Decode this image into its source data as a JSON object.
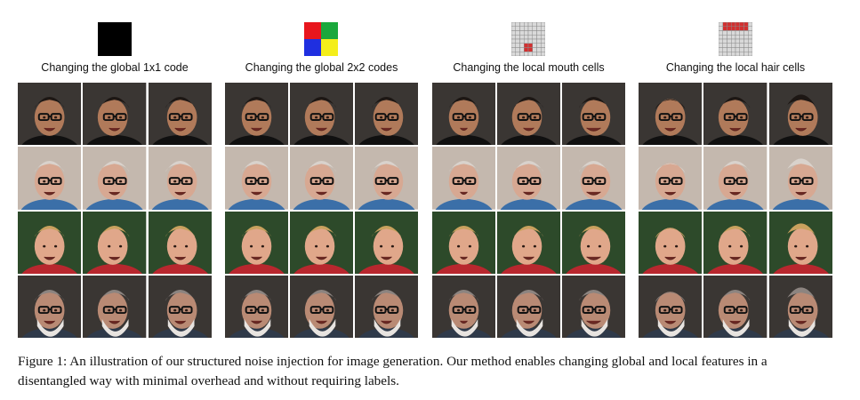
{
  "figure": {
    "panels": [
      {
        "label": "Changing the global 1x1 code",
        "icon": "black-square-1x1"
      },
      {
        "label": "Changing the global 2x2 codes",
        "icon": "color-square-2x2",
        "colors": [
          "#e8161d",
          "#1aa83c",
          "#1f2fe0",
          "#f4ee1b"
        ]
      },
      {
        "label": "Changing the local mouth cells",
        "icon": "grid-mouth-cells",
        "highlight": "#d32f2f"
      },
      {
        "label": "Changing the local hair cells",
        "icon": "grid-hair-cells",
        "highlight": "#d32f2f"
      }
    ],
    "rows": [
      {
        "person": "man-with-glasses",
        "bg": "#3a3633",
        "skin": "#b07a5a",
        "hair": "#1d1714",
        "shirt": "#101010",
        "glasses": true,
        "beard": false
      },
      {
        "person": "bald-older-man",
        "bg": "#c4b8ae",
        "skin": "#d7a892",
        "hair": "#d9d2cc",
        "shirt": "#3b6fa8",
        "glasses": true,
        "beard": false
      },
      {
        "person": "smiling-blonde-woman",
        "bg": "#2d4a2a",
        "skin": "#e0a78a",
        "hair": "#c9a15e",
        "shirt": "#b8272e",
        "glasses": false,
        "beard": false
      },
      {
        "person": "bearded-older-man",
        "bg": "#3a3633",
        "skin": "#b98a74",
        "hair": "#8c8480",
        "shirt": "#2f3a4a",
        "glasses": true,
        "beard": true
      }
    ],
    "caption": "Figure 1:  An illustration of our structured noise injection for image generation.  Our method enables changing global and local features in a disentangled way with minimal overhead and without requiring labels."
  }
}
